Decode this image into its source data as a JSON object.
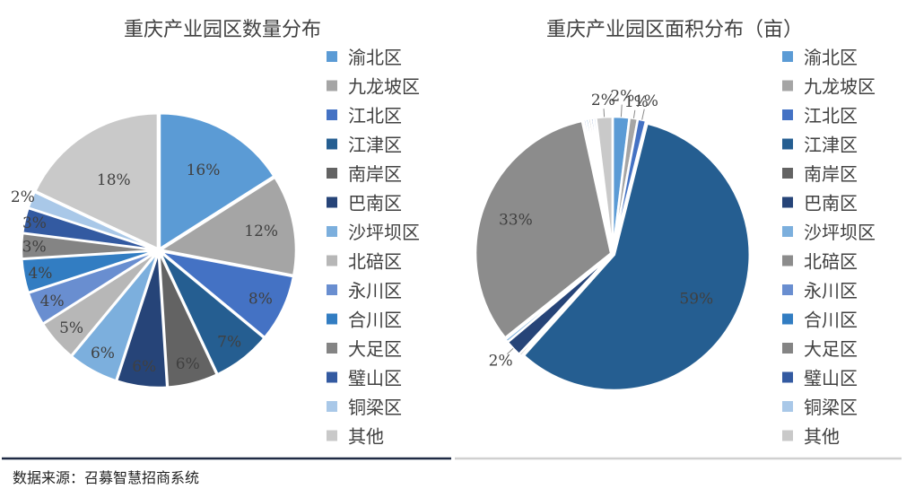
{
  "source_text": "数据来源：召募智慧招商系统",
  "chart_data": [
    {
      "type": "pie",
      "title": "重庆产业园区数量分布",
      "categories": [
        "渝北区",
        "九龙坡区",
        "江北区",
        "江津区",
        "南岸区",
        "巴南区",
        "沙坪坝区",
        "北碚区",
        "永川区",
        "合川区",
        "大足区",
        "璧山区",
        "铜梁区",
        "其他"
      ],
      "values": [
        16,
        12,
        8,
        7,
        6,
        6,
        6,
        5,
        4,
        4,
        3,
        3,
        2,
        18
      ],
      "labels": [
        "16%",
        "12%",
        "8%",
        "7%",
        "6%",
        "6%",
        "6%",
        "5%",
        "4%",
        "4%",
        "3%",
        "3%",
        "2%",
        "18%"
      ],
      "colors": [
        "#5B9BD5",
        "#A5A5A5",
        "#4472C4",
        "#255E91",
        "#636363",
        "#264478",
        "#7CAFDD",
        "#B7B7B7",
        "#698ED0",
        "#327DC2",
        "#848484",
        "#335AA1",
        "#A9C8E8",
        "#C9C9C9"
      ],
      "legend_position": "right"
    },
    {
      "type": "pie",
      "title": "重庆产业园区面积分布（亩）",
      "categories": [
        "渝北区",
        "九龙坡区",
        "江北区",
        "江津区",
        "南岸区",
        "巴南区",
        "沙坪坝区",
        "北碚区",
        "永川区",
        "合川区",
        "大足区",
        "璧山区",
        "铜梁区",
        "其他"
      ],
      "values": [
        2,
        1,
        1,
        59,
        0.3,
        2,
        0.4,
        33,
        0.3,
        0.3,
        0.3,
        0.3,
        0.3,
        2
      ],
      "labels": [
        "2%",
        "1%",
        "1%",
        "59%",
        "",
        "2%",
        "",
        "33%",
        "",
        "",
        "",
        "",
        "",
        "2%"
      ],
      "colors": [
        "#5B9BD5",
        "#A5A5A5",
        "#4472C4",
        "#255E91",
        "#636363",
        "#264478",
        "#7CAFDD",
        "#8C8C8C",
        "#698ED0",
        "#327DC2",
        "#848484",
        "#335AA1",
        "#A9C8E8",
        "#C9C9C9"
      ],
      "legend_position": "right"
    }
  ]
}
